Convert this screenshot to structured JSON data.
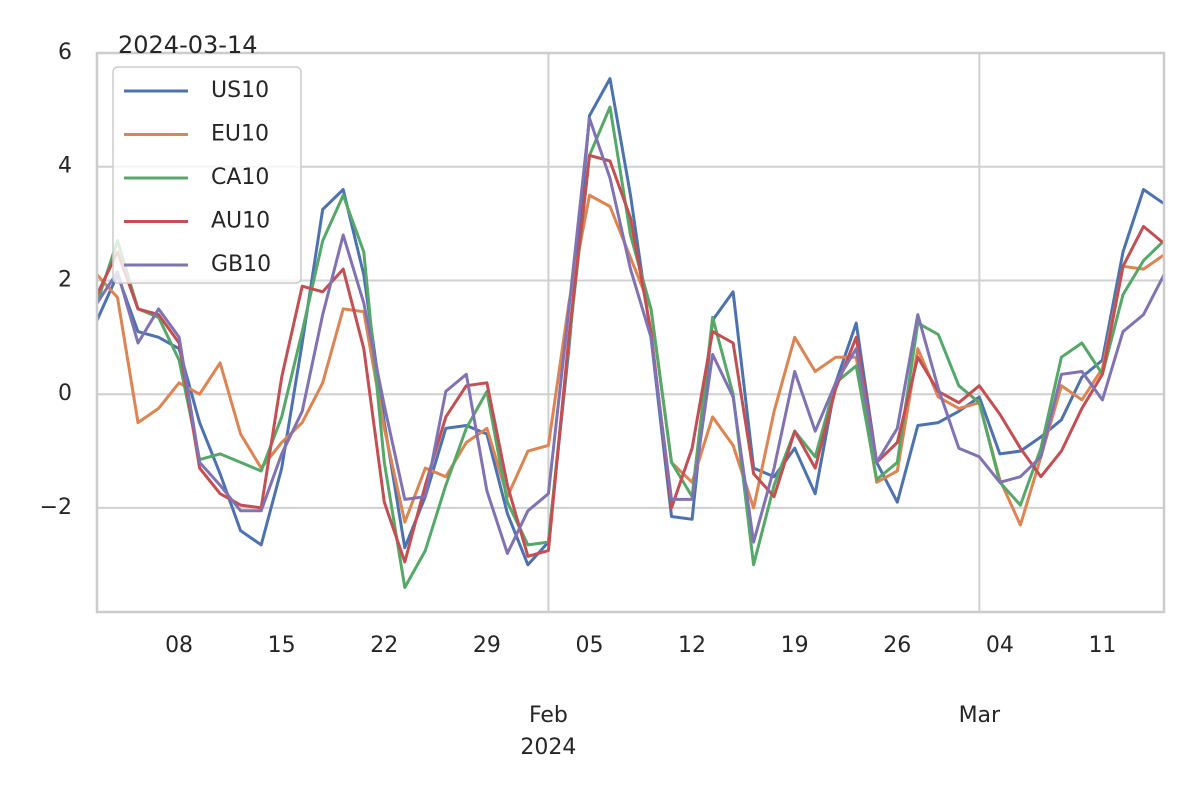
{
  "chart_data": {
    "type": "line",
    "title": "2024-03-14",
    "x": [
      "2024-01-02",
      "2024-01-03",
      "2024-01-04",
      "2024-01-05",
      "2024-01-08",
      "2024-01-09",
      "2024-01-10",
      "2024-01-11",
      "2024-01-12",
      "2024-01-15",
      "2024-01-16",
      "2024-01-17",
      "2024-01-18",
      "2024-01-19",
      "2024-01-22",
      "2024-01-23",
      "2024-01-24",
      "2024-01-25",
      "2024-01-26",
      "2024-01-29",
      "2024-01-30",
      "2024-01-31",
      "2024-02-01",
      "2024-02-02",
      "2024-02-05",
      "2024-02-06",
      "2024-02-07",
      "2024-02-08",
      "2024-02-09",
      "2024-02-12",
      "2024-02-13",
      "2024-02-14",
      "2024-02-15",
      "2024-02-16",
      "2024-02-19",
      "2024-02-20",
      "2024-02-21",
      "2024-02-22",
      "2024-02-23",
      "2024-02-26",
      "2024-02-27",
      "2024-02-28",
      "2024-02-29",
      "2024-03-01",
      "2024-03-04",
      "2024-03-05",
      "2024-03-06",
      "2024-03-07",
      "2024-03-08",
      "2024-03-11",
      "2024-03-12",
      "2024-03-13",
      "2024-03-14"
    ],
    "series": [
      {
        "name": "US10",
        "color": "#4c72b0",
        "values": [
          1.3,
          2.1,
          1.1,
          1.0,
          0.8,
          -0.5,
          -1.4,
          -2.4,
          -2.65,
          -1.3,
          0.9,
          3.25,
          3.6,
          2.1,
          -0.5,
          -2.7,
          -1.8,
          -0.6,
          -0.55,
          -0.7,
          -2.1,
          -3.0,
          -2.6,
          0.8,
          4.9,
          5.55,
          3.5,
          1.0,
          -2.15,
          -2.2,
          1.3,
          1.8,
          -1.3,
          -1.45,
          -0.95,
          -1.75,
          0.2,
          1.25,
          -1.2,
          -1.9,
          -0.55,
          -0.5,
          -0.3,
          -0.05,
          -1.05,
          -1.0,
          -0.75,
          -0.45,
          0.3,
          0.6,
          2.5,
          3.6,
          3.35
        ]
      },
      {
        "name": "EU10",
        "color": "#dd8452",
        "values": [
          2.1,
          1.7,
          -0.5,
          -0.25,
          0.2,
          0.0,
          0.55,
          -0.7,
          -1.3,
          -0.85,
          -0.5,
          0.2,
          1.5,
          1.45,
          -0.6,
          -2.25,
          -1.3,
          -1.45,
          -0.85,
          -0.6,
          -1.8,
          -1.0,
          -0.9,
          1.6,
          3.5,
          3.3,
          2.4,
          1.5,
          -1.2,
          -1.55,
          -0.4,
          -0.9,
          -2.0,
          -0.3,
          1.0,
          0.4,
          0.65,
          0.65,
          -1.55,
          -1.35,
          0.8,
          -0.05,
          -0.25,
          -0.15,
          -1.5,
          -2.3,
          -1.1,
          0.15,
          -0.1,
          0.45,
          2.25,
          2.2,
          2.45
        ]
      },
      {
        "name": "CA10",
        "color": "#55a868",
        "values": [
          1.6,
          2.7,
          1.5,
          1.35,
          0.6,
          -1.15,
          -1.05,
          -1.2,
          -1.35,
          -0.4,
          1.1,
          2.7,
          3.5,
          2.5,
          -1.2,
          -3.4,
          -2.75,
          -1.6,
          -0.6,
          0.05,
          -1.9,
          -2.65,
          -2.6,
          0.9,
          4.2,
          5.05,
          2.8,
          1.5,
          -1.2,
          -1.8,
          1.35,
          0.0,
          -3.0,
          -1.6,
          -0.65,
          -1.1,
          0.2,
          0.5,
          -1.5,
          -1.2,
          1.25,
          1.05,
          0.15,
          -0.15,
          -1.55,
          -1.95,
          -0.95,
          0.65,
          0.9,
          0.35,
          1.75,
          2.35,
          2.7
        ]
      },
      {
        "name": "AU10",
        "color": "#c44e52",
        "values": [
          1.75,
          2.5,
          1.5,
          1.4,
          0.9,
          -1.3,
          -1.75,
          -1.95,
          -2.0,
          0.3,
          1.9,
          1.8,
          2.2,
          0.8,
          -1.9,
          -2.95,
          -1.6,
          -0.4,
          0.15,
          0.2,
          -1.6,
          -2.85,
          -2.75,
          1.0,
          4.2,
          4.1,
          3.1,
          1.1,
          -2.0,
          -0.95,
          1.1,
          0.9,
          -1.4,
          -1.8,
          -0.65,
          -1.3,
          0.1,
          1.0,
          -1.2,
          -0.85,
          0.65,
          0.05,
          -0.15,
          0.15,
          -0.35,
          -0.95,
          -1.45,
          -1.0,
          -0.25,
          0.35,
          2.25,
          2.95,
          2.65
        ]
      },
      {
        "name": "GB10",
        "color": "#8172b3",
        "values": [
          1.6,
          2.15,
          0.9,
          1.5,
          1.0,
          -1.2,
          -1.6,
          -2.05,
          -2.05,
          -1.05,
          -0.3,
          1.4,
          2.8,
          1.6,
          -0.2,
          -1.85,
          -1.8,
          0.05,
          0.35,
          -1.7,
          -2.8,
          -2.05,
          -1.75,
          1.5,
          4.85,
          3.8,
          2.2,
          1.0,
          -1.85,
          -1.85,
          0.7,
          -0.05,
          -2.6,
          -1.3,
          0.4,
          -0.65,
          0.2,
          0.8,
          -1.2,
          -0.6,
          1.4,
          0.1,
          -0.95,
          -1.1,
          -1.55,
          -1.45,
          -1.1,
          0.35,
          0.4,
          -0.1,
          1.1,
          1.4,
          2.1
        ]
      }
    ],
    "xlim": [
      "2024-01-02",
      "2024-03-14"
    ],
    "xticks": [
      {
        "value": "2024-01-08",
        "label": "08"
      },
      {
        "value": "2024-01-15",
        "label": "15"
      },
      {
        "value": "2024-01-22",
        "label": "22"
      },
      {
        "value": "2024-01-29",
        "label": "29"
      },
      {
        "value": "2024-02-05",
        "label": "05"
      },
      {
        "value": "2024-02-12",
        "label": "12"
      },
      {
        "value": "2024-02-19",
        "label": "19"
      },
      {
        "value": "2024-02-26",
        "label": "26"
      },
      {
        "value": "2024-03-04",
        "label": "04"
      },
      {
        "value": "2024-03-11",
        "label": "11"
      }
    ],
    "xticks_major": [
      {
        "value": "2024-02-01",
        "label": "Feb"
      },
      {
        "value": "2024-03-01",
        "label": "Mar"
      }
    ],
    "x_year_label": "2024",
    "ylim": [
      -3.83,
      6
    ],
    "yticks": [
      {
        "value": -2,
        "label": "−2"
      },
      0,
      2,
      4,
      6
    ],
    "grid": true,
    "legend": "upper left"
  }
}
